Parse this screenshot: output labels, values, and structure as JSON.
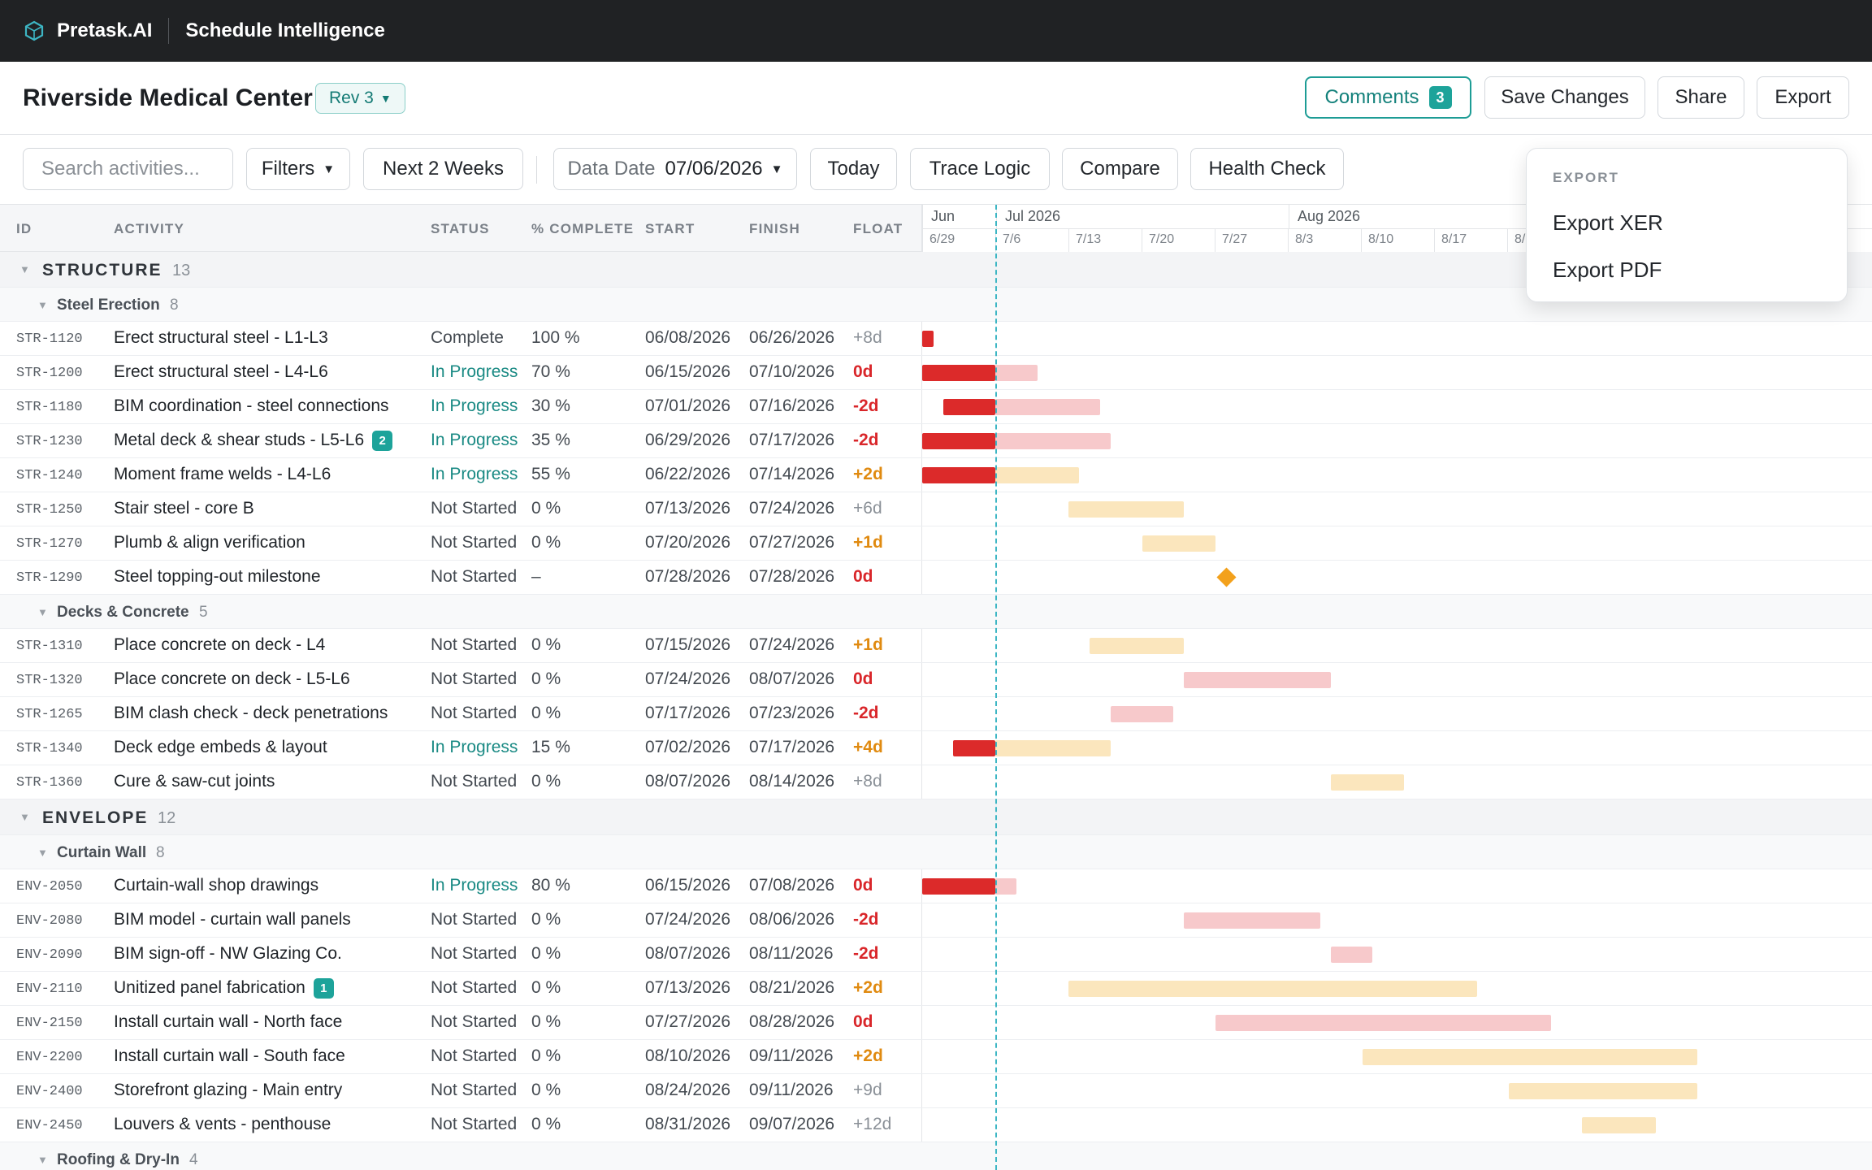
{
  "app": {
    "brand": "Pretask.AI",
    "title": "Schedule Intelligence"
  },
  "project": {
    "name": "Riverside Medical Center",
    "revision": "Rev 3"
  },
  "actions": {
    "comments": "Comments",
    "comments_count": "3",
    "save": "Save Changes",
    "share": "Share",
    "export": "Export"
  },
  "toolbar": {
    "search_placeholder": "Search activities...",
    "filters": "Filters",
    "range": "Next 2 Weeks",
    "data_date_label": "Data Date",
    "data_date_value": "07/06/2026",
    "today": "Today",
    "trace": "Trace Logic",
    "compare": "Compare",
    "health": "Health Check"
  },
  "columns": {
    "id": "ID",
    "activity": "ACTIVITY",
    "status": "STATUS",
    "pct": "% COMPLETE",
    "start": "START",
    "finish": "FINISH",
    "float": "FLOAT"
  },
  "timeline": {
    "months": [
      {
        "label": "Jun"
      },
      {
        "label": "Jul 2026"
      },
      {
        "label": "Aug 2026"
      }
    ],
    "weeks": [
      "6/29",
      "7/6",
      "7/13",
      "7/20",
      "7/27",
      "8/3",
      "8/10",
      "8/17",
      "8/"
    ]
  },
  "export_menu": {
    "header": "EXPORT",
    "items": [
      "Export XER",
      "Export PDF"
    ]
  },
  "colors": {
    "critical_done": "#dc2a2a",
    "critical_remaining": "#f7c9cb",
    "noncritical": "#fbe6bd",
    "milestone": "#f3a11c",
    "accent": "#1da39a"
  },
  "rows": [
    {
      "type": "group",
      "name": "STRUCTURE",
      "count": "13"
    },
    {
      "type": "sub",
      "name": "Steel Erection",
      "count": "8"
    },
    {
      "type": "act",
      "id": "STR-1120",
      "name": "Erect structural steel - L1-L3",
      "status": "Complete",
      "pct": "100 %",
      "start": "06/08/2026",
      "finish": "06/26/2026",
      "float": "+8d",
      "progress": 1.0
    },
    {
      "type": "act",
      "id": "STR-1200",
      "name": "Erect structural steel - L4-L6",
      "status": "In Progress",
      "pct": "70 %",
      "start": "06/15/2026",
      "finish": "07/10/2026",
      "float": "0d",
      "progress": 0.7
    },
    {
      "type": "act",
      "id": "STR-1180",
      "name": "BIM coordination - steel connections",
      "status": "In Progress",
      "pct": "30 %",
      "start": "07/01/2026",
      "finish": "07/16/2026",
      "float": "-2d",
      "progress": 0.3
    },
    {
      "type": "act",
      "id": "STR-1230",
      "name": "Metal deck & shear studs - L5-L6",
      "badge": "2",
      "status": "In Progress",
      "pct": "35 %",
      "start": "06/29/2026",
      "finish": "07/17/2026",
      "float": "-2d",
      "progress": 0.35
    },
    {
      "type": "act",
      "id": "STR-1240",
      "name": "Moment frame welds - L4-L6",
      "status": "In Progress",
      "pct": "55 %",
      "start": "06/22/2026",
      "finish": "07/14/2026",
      "float": "+2d",
      "progress": 0.55
    },
    {
      "type": "act",
      "id": "STR-1250",
      "name": "Stair steel - core B",
      "status": "Not Started",
      "pct": "0 %",
      "start": "07/13/2026",
      "finish": "07/24/2026",
      "float": "+6d",
      "progress": 0
    },
    {
      "type": "act",
      "id": "STR-1270",
      "name": "Plumb & align verification",
      "status": "Not Started",
      "pct": "0 %",
      "start": "07/20/2026",
      "finish": "07/27/2026",
      "float": "+1d",
      "progress": 0
    },
    {
      "type": "act",
      "id": "STR-1290",
      "name": "Steel topping-out milestone",
      "status": "Not Started",
      "pct": "–",
      "start": "07/28/2026",
      "finish": "07/28/2026",
      "float": "0d",
      "progress": 0,
      "milestone": true
    },
    {
      "type": "sub",
      "name": "Decks & Concrete",
      "count": "5"
    },
    {
      "type": "act",
      "id": "STR-1310",
      "name": "Place concrete on deck - L4",
      "status": "Not Started",
      "pct": "0 %",
      "start": "07/15/2026",
      "finish": "07/24/2026",
      "float": "+1d",
      "progress": 0
    },
    {
      "type": "act",
      "id": "STR-1320",
      "name": "Place concrete on deck - L5-L6",
      "status": "Not Started",
      "pct": "0 %",
      "start": "07/24/2026",
      "finish": "08/07/2026",
      "float": "0d",
      "progress": 0
    },
    {
      "type": "act",
      "id": "STR-1265",
      "name": "BIM clash check - deck penetrations",
      "status": "Not Started",
      "pct": "0 %",
      "start": "07/17/2026",
      "finish": "07/23/2026",
      "float": "-2d",
      "progress": 0
    },
    {
      "type": "act",
      "id": "STR-1340",
      "name": "Deck edge embeds & layout",
      "status": "In Progress",
      "pct": "15 %",
      "start": "07/02/2026",
      "finish": "07/17/2026",
      "float": "+4d",
      "progress": 0.15
    },
    {
      "type": "act",
      "id": "STR-1360",
      "name": "Cure & saw-cut joints",
      "status": "Not Started",
      "pct": "0 %",
      "start": "08/07/2026",
      "finish": "08/14/2026",
      "float": "+8d",
      "progress": 0
    },
    {
      "type": "group",
      "name": "ENVELOPE",
      "count": "12"
    },
    {
      "type": "sub",
      "name": "Curtain Wall",
      "count": "8"
    },
    {
      "type": "act",
      "id": "ENV-2050",
      "name": "Curtain-wall shop drawings",
      "status": "In Progress",
      "pct": "80 %",
      "start": "06/15/2026",
      "finish": "07/08/2026",
      "float": "0d",
      "progress": 0.8
    },
    {
      "type": "act",
      "id": "ENV-2080",
      "name": "BIM model - curtain wall panels",
      "status": "Not Started",
      "pct": "0 %",
      "start": "07/24/2026",
      "finish": "08/06/2026",
      "float": "-2d",
      "progress": 0
    },
    {
      "type": "act",
      "id": "ENV-2090",
      "name": "BIM sign-off - NW Glazing Co.",
      "status": "Not Started",
      "pct": "0 %",
      "start": "08/07/2026",
      "finish": "08/11/2026",
      "float": "-2d",
      "progress": 0
    },
    {
      "type": "act",
      "id": "ENV-2110",
      "name": "Unitized panel fabrication",
      "badge": "1",
      "status": "Not Started",
      "pct": "0 %",
      "start": "07/13/2026",
      "finish": "08/21/2026",
      "float": "+2d",
      "progress": 0
    },
    {
      "type": "act",
      "id": "ENV-2150",
      "name": "Install curtain wall - North face",
      "status": "Not Started",
      "pct": "0 %",
      "start": "07/27/2026",
      "finish": "08/28/2026",
      "float": "0d",
      "progress": 0
    },
    {
      "type": "act",
      "id": "ENV-2200",
      "name": "Install curtain wall - South face",
      "status": "Not Started",
      "pct": "0 %",
      "start": "08/10/2026",
      "finish": "09/11/2026",
      "float": "+2d",
      "progress": 0
    },
    {
      "type": "act",
      "id": "ENV-2400",
      "name": "Storefront glazing - Main entry",
      "status": "Not Started",
      "pct": "0 %",
      "start": "08/24/2026",
      "finish": "09/11/2026",
      "float": "+9d",
      "progress": 0
    },
    {
      "type": "act",
      "id": "ENV-2450",
      "name": "Louvers & vents - penthouse",
      "status": "Not Started",
      "pct": "0 %",
      "start": "08/31/2026",
      "finish": "09/07/2026",
      "float": "+12d",
      "progress": 0
    },
    {
      "type": "sub",
      "name": "Roofing & Dry-In",
      "count": "4"
    }
  ]
}
